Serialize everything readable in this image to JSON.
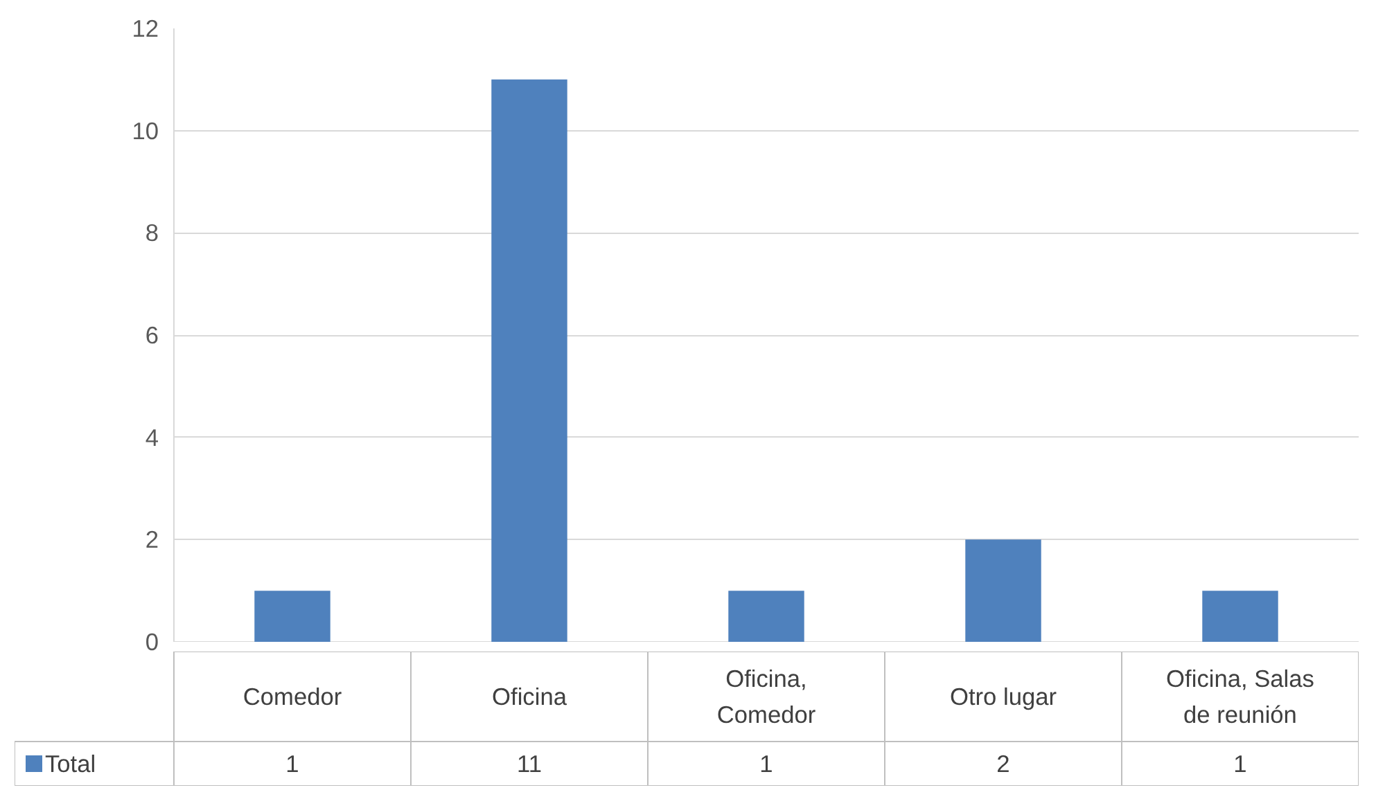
{
  "chart_data": {
    "type": "bar",
    "categories": [
      "Comedor",
      "Oficina",
      "Oficina, Comedor",
      "Otro lugar",
      "Oficina, Salas de reunión"
    ],
    "series": [
      {
        "name": "Total",
        "color": "#4f81bd",
        "values": [
          1,
          11,
          1,
          2,
          1
        ]
      }
    ],
    "ylim": [
      0,
      12
    ],
    "yticks": [
      0,
      2,
      4,
      6,
      8,
      10,
      12
    ],
    "grid": "y",
    "data_labels": true,
    "legend": "bottom"
  }
}
